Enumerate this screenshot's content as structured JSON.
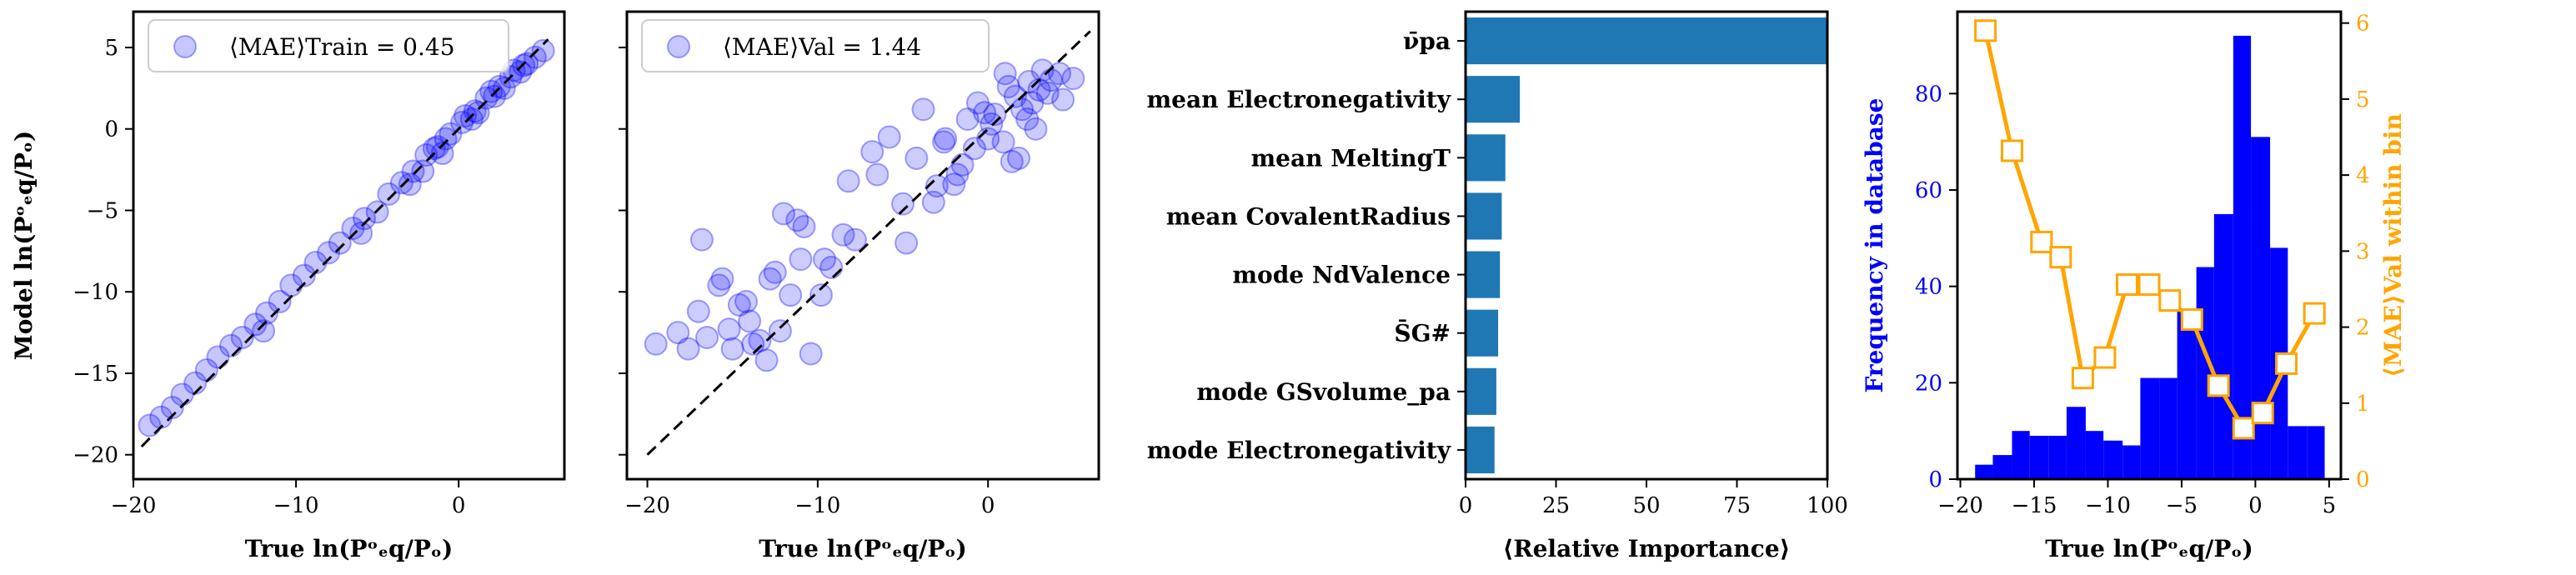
{
  "chart_data": [
    {
      "type": "scatter",
      "xlabel": "True ln(Pᵒₑq/Pₒ)",
      "ylabel": "Model ln(Pᵒₑq/Pₒ)",
      "xlim": [
        -20,
        6.5
      ],
      "ylim": [
        -21.5,
        7.2
      ],
      "xticks": [
        -20,
        -10,
        0
      ],
      "yticks": [
        -20,
        -15,
        -10,
        -5,
        0,
        5
      ],
      "legend": "⟨MAE⟩Train = 0.45",
      "legend_placement": "top-left",
      "point_color": "#0000ff",
      "identity_line": [
        [
          -19.5,
          -19.5
        ],
        [
          5.5,
          5.5
        ]
      ],
      "x": [
        -19.0,
        -18.3,
        -17.6,
        -17.0,
        -16.2,
        -15.5,
        -14.8,
        -14.0,
        -13.3,
        -12.5,
        -11.8,
        -11.0,
        -10.3,
        -9.5,
        -8.8,
        -8.0,
        -7.3,
        -6.5,
        -5.8,
        -5.0,
        -4.3,
        -3.5,
        -2.8,
        -2.0,
        -1.3,
        -0.5,
        0.2,
        1.0,
        1.7,
        2.5,
        3.2,
        4.0,
        4.7,
        5.2,
        -2.2,
        -1.5,
        -0.8,
        0.4,
        1.2,
        2.0,
        2.8,
        3.4,
        4.2,
        -3.0,
        -1.0,
        0.8,
        2.2,
        3.8,
        -6.0,
        -12.0
      ],
      "y": [
        -18.2,
        -17.7,
        -17.1,
        -16.3,
        -15.6,
        -14.8,
        -14.0,
        -13.3,
        -12.8,
        -12.0,
        -11.3,
        -10.6,
        -9.6,
        -9.0,
        -8.2,
        -7.6,
        -7.0,
        -6.1,
        -5.5,
        -5.1,
        -4.0,
        -3.3,
        -2.6,
        -1.6,
        -1.1,
        -0.3,
        0.4,
        1.1,
        1.9,
        2.6,
        3.2,
        3.9,
        4.4,
        4.8,
        -2.6,
        -1.2,
        -0.6,
        0.8,
        1.0,
        2.3,
        2.5,
        3.6,
        4.0,
        -3.4,
        -1.5,
        0.6,
        2.0,
        3.5,
        -6.4,
        -12.4
      ]
    },
    {
      "type": "scatter",
      "xlabel": "True ln(Pᵒₑq/Pₒ)",
      "xlim": [
        -21.2,
        6.5
      ],
      "ylim": [
        -21.5,
        7.2
      ],
      "xticks": [
        -20,
        -10,
        0
      ],
      "legend": "⟨MAE⟩Val = 1.44",
      "legend_placement": "top-left",
      "point_color": "#0000ff",
      "identity_line": [
        [
          -20,
          -20
        ],
        [
          6,
          6
        ]
      ],
      "x": [
        -19.5,
        -18.2,
        -17.6,
        -17.0,
        -16.5,
        -15.8,
        -15.2,
        -14.6,
        -14.0,
        -13.4,
        -12.8,
        -12.2,
        -11.6,
        -11.0,
        -10.4,
        -16.8,
        -14.2,
        -12.5,
        -11.2,
        -9.8,
        -15.0,
        -13.0,
        -10.8,
        -9.2,
        -8.2,
        -6.5,
        -5.0,
        -4.2,
        -7.8,
        -5.8,
        -3.8,
        -2.5,
        -1.5,
        -0.6,
        0.2,
        0.9,
        1.6,
        2.3,
        3.0,
        3.7,
        4.4,
        5.0,
        -2.0,
        -0.8,
        0.4,
        1.2,
        2.0,
        2.8,
        3.5,
        4.2,
        -1.2,
        0.0,
        1.0,
        1.8,
        2.6,
        -3.2,
        -4.8,
        -6.8,
        -1.8,
        2.4,
        3.2,
        -0.2,
        1.4,
        -8.5,
        -3.0,
        -12.0,
        -15.6,
        -13.8,
        -9.6,
        -2.6
      ],
      "y": [
        -13.2,
        -12.5,
        -13.5,
        -11.2,
        -12.8,
        -9.6,
        -12.3,
        -10.8,
        -11.8,
        -13.0,
        -9.2,
        -12.4,
        -10.2,
        -8.0,
        -13.8,
        -6.8,
        -10.6,
        -8.8,
        -5.6,
        -10.2,
        -13.5,
        -14.2,
        -6.0,
        -8.5,
        -3.2,
        -2.8,
        -4.6,
        -1.8,
        -6.8,
        -0.5,
        1.2,
        -0.6,
        -2.2,
        1.6,
        0.3,
        -0.8,
        2.0,
        0.6,
        2.4,
        3.0,
        1.8,
        3.1,
        -3.4,
        -1.2,
        0.9,
        2.6,
        1.2,
        0.0,
        2.2,
        3.4,
        0.6,
        -0.6,
        3.4,
        -1.8,
        1.6,
        -4.5,
        -7.0,
        -1.4,
        -2.8,
        2.9,
        3.6,
        1.0,
        -2.0,
        -6.5,
        -3.5,
        -5.2,
        -9.2,
        -13.2,
        -8.0,
        -0.8
      ]
    },
    {
      "type": "bar",
      "orientation": "horizontal",
      "categories": [
        "ν̄pa",
        "mean Electronegativity",
        "mean MeltingT",
        "mean CovalentRadius",
        "mode NdValence",
        "S̄G#",
        "mode GSvolume_pa",
        "mode Electronegativity"
      ],
      "values": [
        100,
        15,
        11,
        10,
        9.5,
        9.0,
        8.5,
        8.0
      ],
      "xlabel": "⟨Relative Importance⟩",
      "xlim": [
        0,
        100
      ],
      "xticks": [
        0,
        25,
        50,
        75,
        100
      ],
      "bar_color": "#1f77b4"
    },
    {
      "type": "bar",
      "subtype": "histogram_with_line",
      "xlabel": "True ln(Pᵒₑq/Pₒ)",
      "ylabel": "Frequency in database",
      "y2label": "⟨MAE⟩Val within bin",
      "xlim": [
        -20.2,
        5.8
      ],
      "ylim": [
        0,
        97
      ],
      "y2lim": [
        0,
        6.15
      ],
      "xticks": [
        -20,
        -15,
        -10,
        -5,
        0,
        5
      ],
      "yticks": [
        0,
        20,
        40,
        60,
        80
      ],
      "y2ticks": [
        0,
        1,
        2,
        3,
        4,
        5,
        6
      ],
      "bin_edges": [
        -19.0,
        -17.8,
        -16.5,
        -15.3,
        -14.0,
        -12.8,
        -11.5,
        -10.3,
        -9.0,
        -7.8,
        -6.5,
        -5.3,
        -4.0,
        -2.8,
        -1.5,
        -0.3,
        1.0,
        2.2,
        3.5,
        4.7
      ],
      "counts": [
        3,
        5,
        10,
        9,
        9,
        15,
        10,
        8,
        7,
        21,
        21,
        35,
        44,
        55,
        92,
        71,
        48,
        11,
        11
      ],
      "hist_color": "#0000ff",
      "line_color": "#ffa500",
      "line_x": [
        -18.3,
        -16.5,
        -14.5,
        -13.2,
        -11.7,
        -10.2,
        -8.7,
        -7.2,
        -5.8,
        -4.3,
        -2.5,
        -0.8,
        0.5,
        2.1,
        4.0
      ],
      "line_y": [
        5.9,
        4.32,
        3.12,
        2.92,
        1.33,
        1.6,
        2.56,
        2.56,
        2.35,
        2.1,
        1.23,
        0.67,
        0.87,
        1.52,
        2.18
      ]
    }
  ]
}
